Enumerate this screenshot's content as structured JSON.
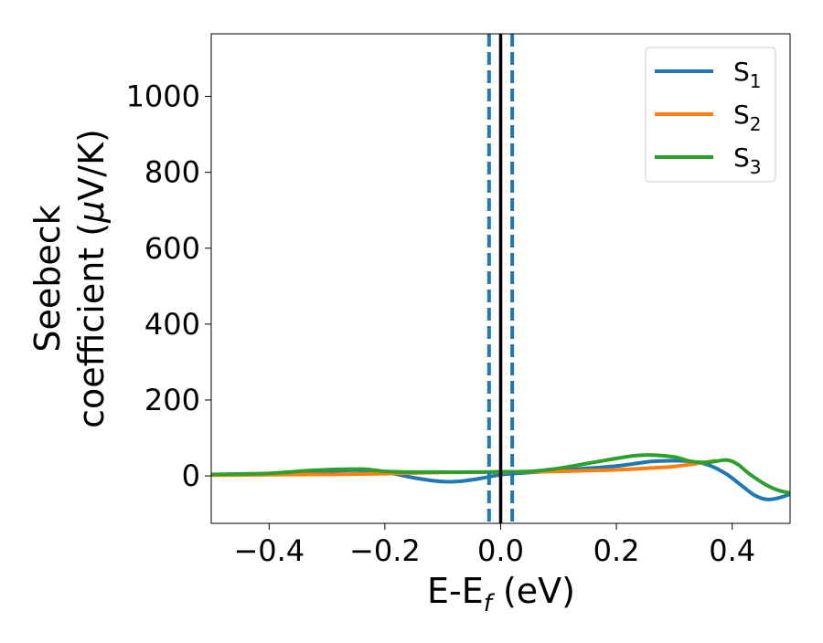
{
  "chart_data": {
    "type": "line",
    "xlabel": "E-E",
    "xlabel_sub": "f",
    "xlabel_suffix": " (eV)",
    "ylabel_line1": "Seebeck",
    "ylabel_line2": "coefficient  (",
    "ylabel_mu": "μ",
    "ylabel_line2_suffix": "V/K)",
    "xlim": [
      -0.5,
      0.5
    ],
    "ylim": [
      -125,
      1165
    ],
    "xticks": [
      -0.4,
      -0.2,
      0.0,
      0.2,
      0.4
    ],
    "xtick_labels": [
      "−0.4",
      "−0.2",
      "0.0",
      "0.2",
      "0.4"
    ],
    "yticks": [
      0,
      200,
      400,
      600,
      800,
      1000
    ],
    "ytick_labels": [
      "0",
      "200",
      "400",
      "600",
      "800",
      "1000"
    ],
    "grid": false,
    "legend_position": "top-right",
    "vlines": [
      {
        "x": 0.0,
        "style": "solid",
        "color": "#000000"
      },
      {
        "x": -0.02,
        "style": "dashed",
        "color": "#1f77b4"
      },
      {
        "x": 0.02,
        "style": "dashed",
        "color": "#1f77b4"
      }
    ],
    "series": [
      {
        "name": "S",
        "sub": "1",
        "color": "#1f77b4",
        "x": [
          -0.5,
          -0.4,
          -0.3,
          -0.25,
          -0.2,
          -0.15,
          -0.1,
          -0.07,
          -0.04,
          0.0,
          0.04,
          0.08,
          0.12,
          0.16,
          0.2,
          0.24,
          0.26,
          0.3,
          0.33,
          0.36,
          0.39,
          0.42,
          0.44,
          0.46,
          0.48,
          0.5
        ],
        "y": [
          3,
          5,
          12,
          15,
          10,
          -5,
          -15,
          -14,
          -8,
          3,
          8,
          12,
          17,
          21,
          26,
          34,
          38,
          40,
          38,
          28,
          5,
          -30,
          -52,
          -62,
          -58,
          -48
        ]
      },
      {
        "name": "S",
        "sub": "2",
        "color": "#ff7f0e",
        "x": [
          -0.5,
          -0.4,
          -0.3,
          -0.2,
          -0.1,
          0.0,
          0.1,
          0.2,
          0.25,
          0.3,
          0.35,
          0.37
        ],
        "y": [
          2,
          3,
          4,
          6,
          9,
          10,
          12,
          16,
          20,
          25,
          35,
          40
        ]
      },
      {
        "name": "S",
        "sub": "3",
        "color": "#2ca02c",
        "x": [
          -0.5,
          -0.4,
          -0.32,
          -0.24,
          -0.2,
          -0.15,
          -0.1,
          -0.05,
          0.0,
          0.05,
          0.1,
          0.15,
          0.2,
          0.23,
          0.26,
          0.3,
          0.33,
          0.36,
          0.39,
          0.41,
          0.43,
          0.46,
          0.48,
          0.5
        ],
        "y": [
          4,
          7,
          15,
          18,
          12,
          10,
          10,
          10,
          11,
          12,
          20,
          33,
          46,
          53,
          55,
          50,
          38,
          36,
          42,
          30,
          5,
          -25,
          -38,
          -45
        ]
      }
    ]
  }
}
